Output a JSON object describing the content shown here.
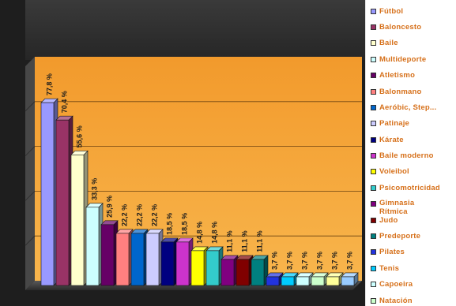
{
  "chart_data": {
    "type": "bar",
    "ylim": [
      0,
      100
    ],
    "grid": true,
    "legend_position": "right",
    "series": [
      {
        "name": "Fútbol",
        "values": [
          77.8
        ],
        "data_label": "77,8 %",
        "color": "#9999FF"
      },
      {
        "name": "Baloncesto",
        "values": [
          70.4
        ],
        "data_label": "70,4 %",
        "color": "#993366"
      },
      {
        "name": "Baile",
        "values": [
          55.6
        ],
        "data_label": "55,6 %",
        "color": "#FFFFCC"
      },
      {
        "name": "Multideporte",
        "values": [
          33.3
        ],
        "data_label": "33,3 %",
        "color": "#CCFFFF"
      },
      {
        "name": "Atletismo",
        "values": [
          25.9
        ],
        "data_label": "25,9 %",
        "color": "#660066"
      },
      {
        "name": "Balonmano",
        "values": [
          22.2
        ],
        "data_label": "22,2 %",
        "color": "#FF8080"
      },
      {
        "name": "Aeróbic, Step...",
        "values": [
          22.2
        ],
        "data_label": "22,2 %",
        "color": "#0066CC"
      },
      {
        "name": "Patinaje",
        "values": [
          22.2
        ],
        "data_label": "22,2 %",
        "color": "#CCCCFF"
      },
      {
        "name": "Kárate",
        "values": [
          18.5
        ],
        "data_label": "18,5 %",
        "color": "#000080"
      },
      {
        "name": "Baile moderno",
        "values": [
          18.5
        ],
        "data_label": "18,5 %",
        "color": "#CC33CC"
      },
      {
        "name": "Voleibol",
        "values": [
          14.8
        ],
        "data_label": "14,8 %",
        "color": "#FFFF00"
      },
      {
        "name": "Psicomotricidad",
        "values": [
          14.8
        ],
        "data_label": "14,8 %",
        "color": "#33CCCC"
      },
      {
        "name": "Gimnasia Rítmica",
        "values": [
          11.1
        ],
        "data_label": "11,1 %",
        "color": "#800080"
      },
      {
        "name": "Judo",
        "values": [
          11.1
        ],
        "data_label": "11,1 %",
        "color": "#800000"
      },
      {
        "name": "Predeporte",
        "values": [
          11.1
        ],
        "data_label": "11,1 %",
        "color": "#008080"
      },
      {
        "name": "Pilates",
        "values": [
          3.7
        ],
        "data_label": "3,7 %",
        "color": "#2233DD"
      },
      {
        "name": "Tenis",
        "values": [
          3.7
        ],
        "data_label": "3,7 %",
        "color": "#00CCFF"
      },
      {
        "name": "Capoeira",
        "values": [
          3.7
        ],
        "data_label": "3,7 %",
        "color": "#CCFFFF"
      },
      {
        "name": "Natación",
        "values": [
          3.7
        ],
        "data_label": "3,7 %",
        "color": "#CCFFCC"
      },
      {
        "values": [
          3.7
        ],
        "data_label": "3,7 %",
        "color": "#FFFF99"
      },
      {
        "values": [
          3.7
        ],
        "data_label": "3,7 %",
        "color": "#99CCFF"
      }
    ]
  },
  "colors": {
    "legend_text": "#D6701A",
    "plot_background_top": "#F29A2C",
    "plot_background_bottom": "#F8B54C",
    "frame_dark": "#1E1E1E"
  }
}
